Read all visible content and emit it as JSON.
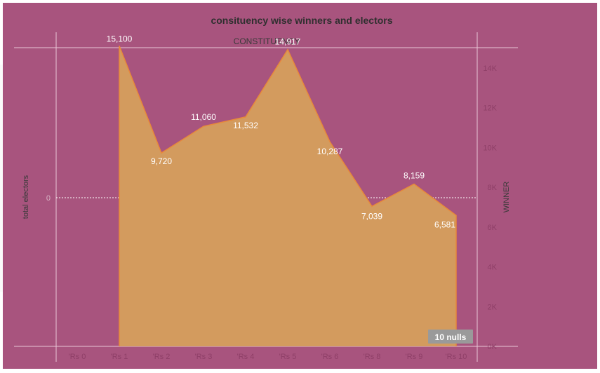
{
  "chart_data": {
    "type": "area",
    "title": "consituency wise winners and electors",
    "column_header": "CONSTITUENCY",
    "categories": [
      "'Rs 0",
      "'Rs 1",
      "'Rs 2",
      "'Rs 3",
      "'Rs 4",
      "'Rs 5",
      "'Rs 6",
      "'Rs 8",
      "'Rs 9",
      "'Rs 10"
    ],
    "series": [
      {
        "values": [
          null,
          15100,
          9720,
          11060,
          11532,
          14917,
          10287,
          7039,
          8159,
          6581
        ]
      }
    ],
    "data_labels": [
      "",
      "15,100",
      "9,720",
      "11,060",
      "11,532",
      "14,917",
      "10,287",
      "7,039",
      "8,159",
      "6,581"
    ],
    "left_axis": {
      "title": "total electors",
      "ticks": [
        "0"
      ]
    },
    "right_axis": {
      "title": "WINNER",
      "ticks": [
        "0K",
        "2K",
        "4K",
        "6K",
        "8K",
        "10K",
        "12K",
        "14K"
      ],
      "ylim": [
        0,
        16000
      ]
    },
    "null_indicator": "10 nulls",
    "colors": {
      "background": "#a8547e",
      "area_fill": "#d39b5e",
      "area_line": "#e8893a"
    }
  }
}
